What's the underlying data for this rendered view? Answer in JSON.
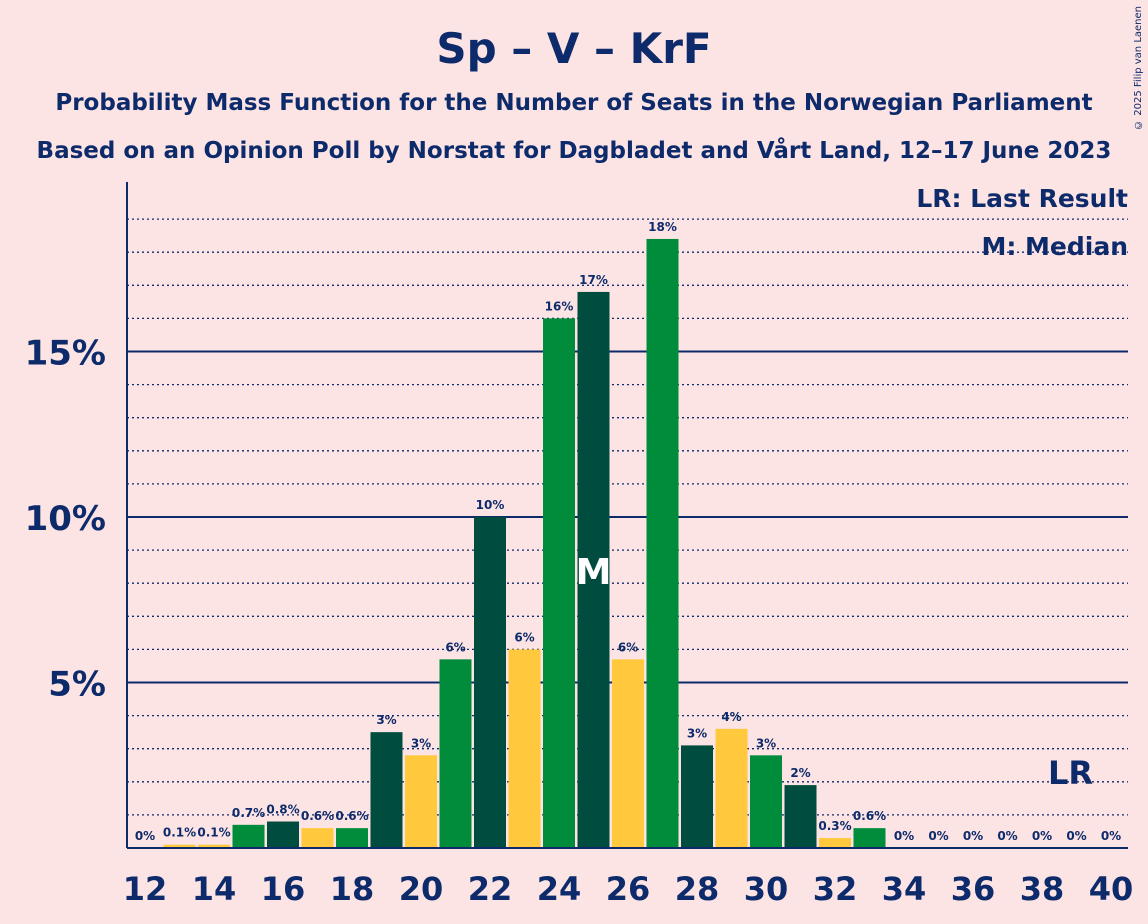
{
  "header": {
    "title": "Sp – V – KrF",
    "subtitle1": "Probability Mass Function for the Number of Seats in the Norwegian Parliament",
    "subtitle2": "Based on an Opinion Poll by Norstat for Dagbladet and Vårt Land, 12–17 June 2023",
    "copyright": "© 2025 Filip van Laenen"
  },
  "legend": {
    "lr": "LR: Last Result",
    "m": "M: Median"
  },
  "colors": {
    "background": "#fde4e4",
    "axis": "#0d2b6b",
    "green": "#008c3a",
    "dark_green": "#004d40",
    "yellow": "#ffc83d"
  },
  "chart_data": {
    "type": "bar",
    "title": "Sp – V – KrF",
    "x": [
      12,
      13,
      14,
      15,
      16,
      17,
      18,
      19,
      20,
      21,
      22,
      23,
      24,
      25,
      26,
      27,
      28,
      29,
      30,
      31,
      32,
      33,
      34,
      35,
      36,
      37,
      38,
      39,
      40
    ],
    "values": [
      0,
      0.1,
      0.1,
      0.7,
      0.8,
      0.6,
      0.6,
      3.5,
      2.8,
      5.7,
      10,
      6,
      16,
      16.8,
      5.7,
      18.4,
      3.1,
      3.6,
      2.8,
      1.9,
      0.3,
      0.6,
      0,
      0,
      0,
      0,
      0,
      0,
      0
    ],
    "data_labels": [
      "0%",
      "0.1%",
      "0.1%",
      "0.7%",
      "0.8%",
      "0.6%",
      "0.6%",
      "3%",
      "3%",
      "6%",
      "10%",
      "6%",
      "16%",
      "17%",
      "6%",
      "18%",
      "3%",
      "4%",
      "3%",
      "2%",
      "0.3%",
      "0.6%",
      "0%",
      "0%",
      "0%",
      "0%",
      "0%",
      "0%",
      "0%"
    ],
    "bar_colors": [
      "green",
      "yellow",
      "yellow",
      "green",
      "dark_green",
      "yellow",
      "green",
      "dark_green",
      "yellow",
      "green",
      "dark_green",
      "yellow",
      "green",
      "dark_green",
      "yellow",
      "green",
      "dark_green",
      "yellow",
      "green",
      "dark_green",
      "yellow",
      "green",
      "green",
      "green",
      "green",
      "green",
      "green",
      "green",
      "green"
    ],
    "x_tick_labels": [
      "12",
      "14",
      "16",
      "18",
      "20",
      "22",
      "24",
      "26",
      "28",
      "30",
      "32",
      "34",
      "36",
      "38",
      "40"
    ],
    "y_tick_labels": [
      "5%",
      "10%",
      "15%"
    ],
    "y_ticks": [
      5,
      10,
      15
    ],
    "ylim": [
      0,
      20
    ],
    "minor_grid_step": 1,
    "median_seat": 25,
    "median_label": "M",
    "last_result_seat": 39,
    "last_result_label": "LR",
    "legend_position": "top-right"
  }
}
